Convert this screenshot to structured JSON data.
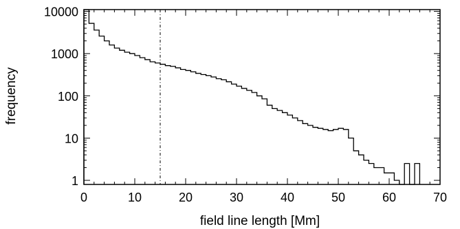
{
  "chart_data": {
    "type": "bar",
    "histogram": true,
    "title": "",
    "xlabel": "field line length [Mm]",
    "ylabel": "frequency",
    "xlim": [
      0,
      70
    ],
    "ylim": [
      0.8,
      11000
    ],
    "yscale": "log",
    "grid": false,
    "xticks": [
      0,
      10,
      20,
      30,
      40,
      50,
      60,
      70
    ],
    "xtick_labels": [
      "0",
      "10",
      "20",
      "30",
      "40",
      "50",
      "60",
      "70"
    ],
    "yticks": [
      1,
      10,
      100,
      1000,
      10000
    ],
    "ytick_labels": [
      "1",
      "10",
      "100",
      "1000",
      "10000"
    ],
    "bin_width": 1,
    "bin_start": 0,
    "values": [
      11000,
      5200,
      3600,
      2600,
      2000,
      1600,
      1350,
      1200,
      1080,
      1000,
      900,
      800,
      720,
      640,
      600,
      560,
      520,
      500,
      460,
      420,
      400,
      370,
      340,
      320,
      300,
      280,
      255,
      240,
      215,
      190,
      170,
      150,
      135,
      120,
      100,
      85,
      60,
      50,
      45,
      40,
      35,
      30,
      26,
      22,
      20,
      18,
      17,
      16,
      15,
      16,
      17,
      16,
      10,
      5,
      4,
      3,
      2.5,
      2,
      2,
      1.5,
      1.5,
      1,
      0.8,
      2.5,
      0.8,
      2.5
    ],
    "reference_line": {
      "x": 15,
      "style": "dash-dot"
    }
  }
}
